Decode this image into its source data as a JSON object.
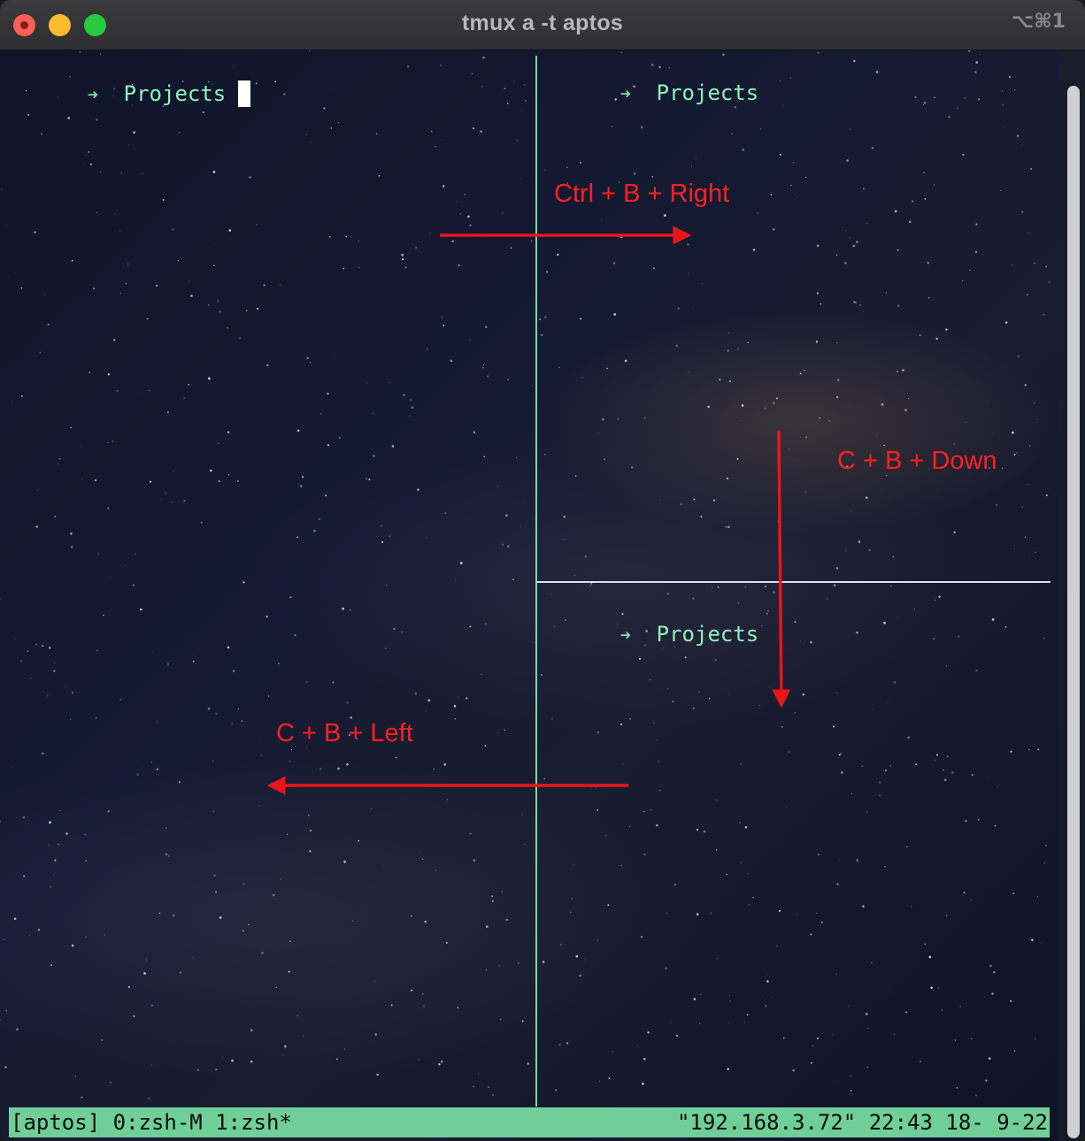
{
  "window": {
    "title": "tmux a -t aptos",
    "shortcut": "⌥⌘1"
  },
  "panes": [
    {
      "prompt_symbol": "➜",
      "directory": "Projects",
      "active": true
    },
    {
      "prompt_symbol": "➜",
      "directory": "Projects",
      "active": false
    },
    {
      "prompt_symbol": "➜",
      "directory": "Projects",
      "active": false
    }
  ],
  "status_bar": {
    "left": "[aptos] 0:zsh-M 1:zsh*",
    "right": "\"192.168.3.72\" 22:43 18- 9-22"
  },
  "annotations": {
    "right": "Ctrl + B + Right",
    "down": "C + B + Down",
    "left": "C + B + Left"
  },
  "colors": {
    "pane_border_active": "#78d8a0",
    "pane_border": "#d8e4ee",
    "status_bar": "#6fcf97",
    "prompt": "#8ff0b8",
    "annotation": "#ff2020"
  }
}
